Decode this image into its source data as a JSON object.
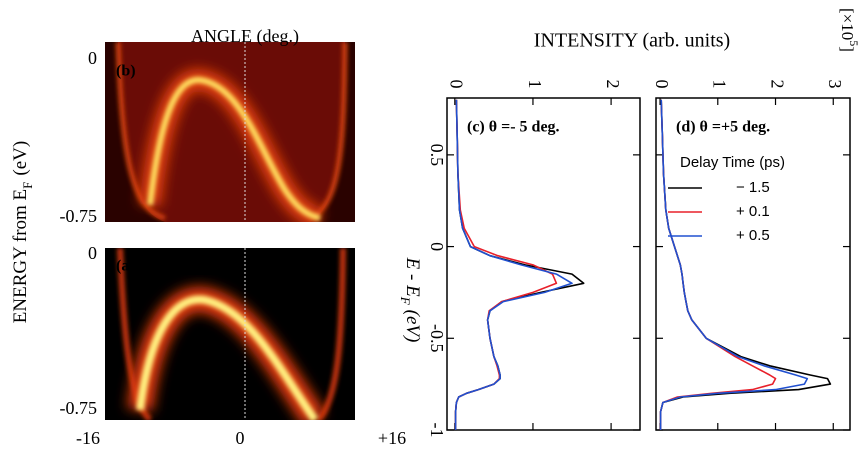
{
  "chart_data": [
    {
      "type": "heatmap",
      "panel_label": "(b)",
      "x_label": "ANGLE (deg.)",
      "y_label": {
        "text": "ENERGY from E",
        "sub": "F",
        "unit": "(eV)"
      },
      "ylim": [
        -0.75,
        0
      ],
      "yticks": [
        0,
        -0.75
      ]
    },
    {
      "type": "heatmap",
      "panel_label": "(a)",
      "xlim": [
        -16,
        16
      ],
      "xticks": [
        -16,
        0,
        {
          "value": 16,
          "label": "+16"
        }
      ],
      "ylim": [
        -0.75,
        0
      ],
      "yticks": [
        0,
        -0.75
      ]
    },
    {
      "type": "line",
      "orientation": "rotated",
      "panel_label": "(c) θ =- 5 deg.",
      "x_label": "INTENSITY  (arb. units)",
      "energy_label": {
        "text": "E - E",
        "sub": "F",
        "unit": "(eV)"
      },
      "x": [
        0.8,
        0.6,
        0.4,
        0.2,
        0.1,
        0,
        -0.05,
        -0.1,
        -0.15,
        -0.2,
        -0.25,
        -0.3,
        -0.35,
        -0.4,
        -0.5,
        -0.6,
        -0.65,
        -0.7,
        -0.72,
        -0.75,
        -0.78,
        -0.8,
        -0.82,
        -0.85,
        -0.9,
        -1.0
      ],
      "xlim": [
        -1,
        0.81
      ],
      "xticks": [
        0.5,
        0,
        -0.5,
        -1
      ],
      "ylim": [
        -0.1,
        2.37
      ],
      "yticks": [
        0,
        1,
        2
      ],
      "series": [
        {
          "color": "#000000",
          "values": [
            0.02,
            0.03,
            0.04,
            0.06,
            0.1,
            0.2,
            0.45,
            0.9,
            1.5,
            1.65,
            1.1,
            0.6,
            0.45,
            0.42,
            0.45,
            0.5,
            0.55,
            0.58,
            0.58,
            0.5,
            0.3,
            0.15,
            0.05,
            0.02,
            0.01,
            0.01
          ]
        },
        {
          "color": "#e8202a",
          "values": [
            0.02,
            0.03,
            0.04,
            0.07,
            0.12,
            0.25,
            0.55,
            1.0,
            1.25,
            1.3,
            1.0,
            0.6,
            0.44,
            0.42,
            0.45,
            0.5,
            0.54,
            0.57,
            0.57,
            0.5,
            0.3,
            0.15,
            0.05,
            0.02,
            0.01,
            0.01
          ]
        },
        {
          "color": "#2050d0",
          "values": [
            0.02,
            0.03,
            0.04,
            0.06,
            0.1,
            0.2,
            0.45,
            0.85,
            1.3,
            1.5,
            1.15,
            0.62,
            0.45,
            0.42,
            0.45,
            0.5,
            0.55,
            0.58,
            0.58,
            0.5,
            0.3,
            0.15,
            0.05,
            0.02,
            0.01,
            0.01
          ]
        }
      ]
    },
    {
      "type": "line",
      "orientation": "rotated",
      "panel_label": "(d) θ =+5 deg.",
      "scale_label": {
        "base": "[×10",
        "exponent": "5",
        "end": "]"
      },
      "legend_title": "Delay Time  (ps)",
      "x": [
        0.8,
        0.6,
        0.4,
        0.2,
        0.1,
        0,
        -0.05,
        -0.1,
        -0.15,
        -0.2,
        -0.25,
        -0.3,
        -0.35,
        -0.4,
        -0.5,
        -0.6,
        -0.65,
        -0.7,
        -0.72,
        -0.75,
        -0.78,
        -0.8,
        -0.82,
        -0.85,
        -0.9,
        -1.0
      ],
      "xlim": [
        -1,
        0.81
      ],
      "xticks": [
        0.5,
        0,
        -0.5,
        -1
      ],
      "xtick_labels": false,
      "ylim": [
        -0.07,
        3.29
      ],
      "yticks": [
        0,
        1,
        2,
        3
      ],
      "series": [
        {
          "name": "− 1.5",
          "color": "#000000",
          "values": [
            0.02,
            0.04,
            0.06,
            0.1,
            0.15,
            0.25,
            0.3,
            0.35,
            0.38,
            0.4,
            0.42,
            0.45,
            0.48,
            0.55,
            0.8,
            1.4,
            1.9,
            2.6,
            2.9,
            2.95,
            2.4,
            1.2,
            0.4,
            0.05,
            0.01,
            0.01
          ]
        },
        {
          "name": "+ 0.1",
          "color": "#e8202a",
          "values": [
            0.02,
            0.04,
            0.06,
            0.1,
            0.15,
            0.25,
            0.3,
            0.35,
            0.38,
            0.4,
            0.42,
            0.45,
            0.48,
            0.55,
            0.8,
            1.3,
            1.6,
            1.9,
            2.0,
            1.95,
            1.6,
            0.9,
            0.3,
            0.05,
            0.01,
            0.01
          ]
        },
        {
          "name": "+ 0.5",
          "color": "#2050d0",
          "values": [
            0.02,
            0.04,
            0.06,
            0.1,
            0.15,
            0.25,
            0.3,
            0.35,
            0.38,
            0.4,
            0.42,
            0.45,
            0.48,
            0.55,
            0.8,
            1.35,
            1.8,
            2.35,
            2.55,
            2.5,
            2.0,
            1.0,
            0.35,
            0.05,
            0.01,
            0.01
          ]
        }
      ]
    }
  ]
}
